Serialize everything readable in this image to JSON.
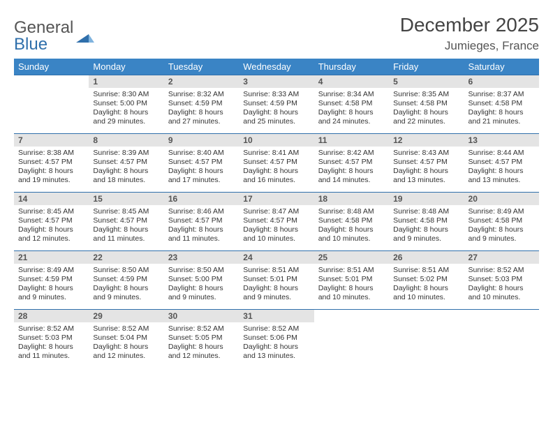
{
  "logo": {
    "text1": "General",
    "text2": "Blue"
  },
  "title": "December 2025",
  "location": "Jumieges, France",
  "colors": {
    "header_bg": "#3a84c5",
    "header_text": "#ffffff",
    "daynum_bg": "#e4e4e4",
    "row_border": "#2f6fab",
    "logo_blue": "#2f6fab",
    "text": "#333333"
  },
  "weekdays": [
    "Sunday",
    "Monday",
    "Tuesday",
    "Wednesday",
    "Thursday",
    "Friday",
    "Saturday"
  ],
  "weeks": [
    [
      null,
      {
        "n": "1",
        "sr": "Sunrise: 8:30 AM",
        "ss": "Sunset: 5:00 PM",
        "d1": "Daylight: 8 hours",
        "d2": "and 29 minutes."
      },
      {
        "n": "2",
        "sr": "Sunrise: 8:32 AM",
        "ss": "Sunset: 4:59 PM",
        "d1": "Daylight: 8 hours",
        "d2": "and 27 minutes."
      },
      {
        "n": "3",
        "sr": "Sunrise: 8:33 AM",
        "ss": "Sunset: 4:59 PM",
        "d1": "Daylight: 8 hours",
        "d2": "and 25 minutes."
      },
      {
        "n": "4",
        "sr": "Sunrise: 8:34 AM",
        "ss": "Sunset: 4:58 PM",
        "d1": "Daylight: 8 hours",
        "d2": "and 24 minutes."
      },
      {
        "n": "5",
        "sr": "Sunrise: 8:35 AM",
        "ss": "Sunset: 4:58 PM",
        "d1": "Daylight: 8 hours",
        "d2": "and 22 minutes."
      },
      {
        "n": "6",
        "sr": "Sunrise: 8:37 AM",
        "ss": "Sunset: 4:58 PM",
        "d1": "Daylight: 8 hours",
        "d2": "and 21 minutes."
      }
    ],
    [
      {
        "n": "7",
        "sr": "Sunrise: 8:38 AM",
        "ss": "Sunset: 4:57 PM",
        "d1": "Daylight: 8 hours",
        "d2": "and 19 minutes."
      },
      {
        "n": "8",
        "sr": "Sunrise: 8:39 AM",
        "ss": "Sunset: 4:57 PM",
        "d1": "Daylight: 8 hours",
        "d2": "and 18 minutes."
      },
      {
        "n": "9",
        "sr": "Sunrise: 8:40 AM",
        "ss": "Sunset: 4:57 PM",
        "d1": "Daylight: 8 hours",
        "d2": "and 17 minutes."
      },
      {
        "n": "10",
        "sr": "Sunrise: 8:41 AM",
        "ss": "Sunset: 4:57 PM",
        "d1": "Daylight: 8 hours",
        "d2": "and 16 minutes."
      },
      {
        "n": "11",
        "sr": "Sunrise: 8:42 AM",
        "ss": "Sunset: 4:57 PM",
        "d1": "Daylight: 8 hours",
        "d2": "and 14 minutes."
      },
      {
        "n": "12",
        "sr": "Sunrise: 8:43 AM",
        "ss": "Sunset: 4:57 PM",
        "d1": "Daylight: 8 hours",
        "d2": "and 13 minutes."
      },
      {
        "n": "13",
        "sr": "Sunrise: 8:44 AM",
        "ss": "Sunset: 4:57 PM",
        "d1": "Daylight: 8 hours",
        "d2": "and 13 minutes."
      }
    ],
    [
      {
        "n": "14",
        "sr": "Sunrise: 8:45 AM",
        "ss": "Sunset: 4:57 PM",
        "d1": "Daylight: 8 hours",
        "d2": "and 12 minutes."
      },
      {
        "n": "15",
        "sr": "Sunrise: 8:45 AM",
        "ss": "Sunset: 4:57 PM",
        "d1": "Daylight: 8 hours",
        "d2": "and 11 minutes."
      },
      {
        "n": "16",
        "sr": "Sunrise: 8:46 AM",
        "ss": "Sunset: 4:57 PM",
        "d1": "Daylight: 8 hours",
        "d2": "and 11 minutes."
      },
      {
        "n": "17",
        "sr": "Sunrise: 8:47 AM",
        "ss": "Sunset: 4:57 PM",
        "d1": "Daylight: 8 hours",
        "d2": "and 10 minutes."
      },
      {
        "n": "18",
        "sr": "Sunrise: 8:48 AM",
        "ss": "Sunset: 4:58 PM",
        "d1": "Daylight: 8 hours",
        "d2": "and 10 minutes."
      },
      {
        "n": "19",
        "sr": "Sunrise: 8:48 AM",
        "ss": "Sunset: 4:58 PM",
        "d1": "Daylight: 8 hours",
        "d2": "and 9 minutes."
      },
      {
        "n": "20",
        "sr": "Sunrise: 8:49 AM",
        "ss": "Sunset: 4:58 PM",
        "d1": "Daylight: 8 hours",
        "d2": "and 9 minutes."
      }
    ],
    [
      {
        "n": "21",
        "sr": "Sunrise: 8:49 AM",
        "ss": "Sunset: 4:59 PM",
        "d1": "Daylight: 8 hours",
        "d2": "and 9 minutes."
      },
      {
        "n": "22",
        "sr": "Sunrise: 8:50 AM",
        "ss": "Sunset: 4:59 PM",
        "d1": "Daylight: 8 hours",
        "d2": "and 9 minutes."
      },
      {
        "n": "23",
        "sr": "Sunrise: 8:50 AM",
        "ss": "Sunset: 5:00 PM",
        "d1": "Daylight: 8 hours",
        "d2": "and 9 minutes."
      },
      {
        "n": "24",
        "sr": "Sunrise: 8:51 AM",
        "ss": "Sunset: 5:01 PM",
        "d1": "Daylight: 8 hours",
        "d2": "and 9 minutes."
      },
      {
        "n": "25",
        "sr": "Sunrise: 8:51 AM",
        "ss": "Sunset: 5:01 PM",
        "d1": "Daylight: 8 hours",
        "d2": "and 10 minutes."
      },
      {
        "n": "26",
        "sr": "Sunrise: 8:51 AM",
        "ss": "Sunset: 5:02 PM",
        "d1": "Daylight: 8 hours",
        "d2": "and 10 minutes."
      },
      {
        "n": "27",
        "sr": "Sunrise: 8:52 AM",
        "ss": "Sunset: 5:03 PM",
        "d1": "Daylight: 8 hours",
        "d2": "and 10 minutes."
      }
    ],
    [
      {
        "n": "28",
        "sr": "Sunrise: 8:52 AM",
        "ss": "Sunset: 5:03 PM",
        "d1": "Daylight: 8 hours",
        "d2": "and 11 minutes."
      },
      {
        "n": "29",
        "sr": "Sunrise: 8:52 AM",
        "ss": "Sunset: 5:04 PM",
        "d1": "Daylight: 8 hours",
        "d2": "and 12 minutes."
      },
      {
        "n": "30",
        "sr": "Sunrise: 8:52 AM",
        "ss": "Sunset: 5:05 PM",
        "d1": "Daylight: 8 hours",
        "d2": "and 12 minutes."
      },
      {
        "n": "31",
        "sr": "Sunrise: 8:52 AM",
        "ss": "Sunset: 5:06 PM",
        "d1": "Daylight: 8 hours",
        "d2": "and 13 minutes."
      },
      null,
      null,
      null
    ]
  ]
}
